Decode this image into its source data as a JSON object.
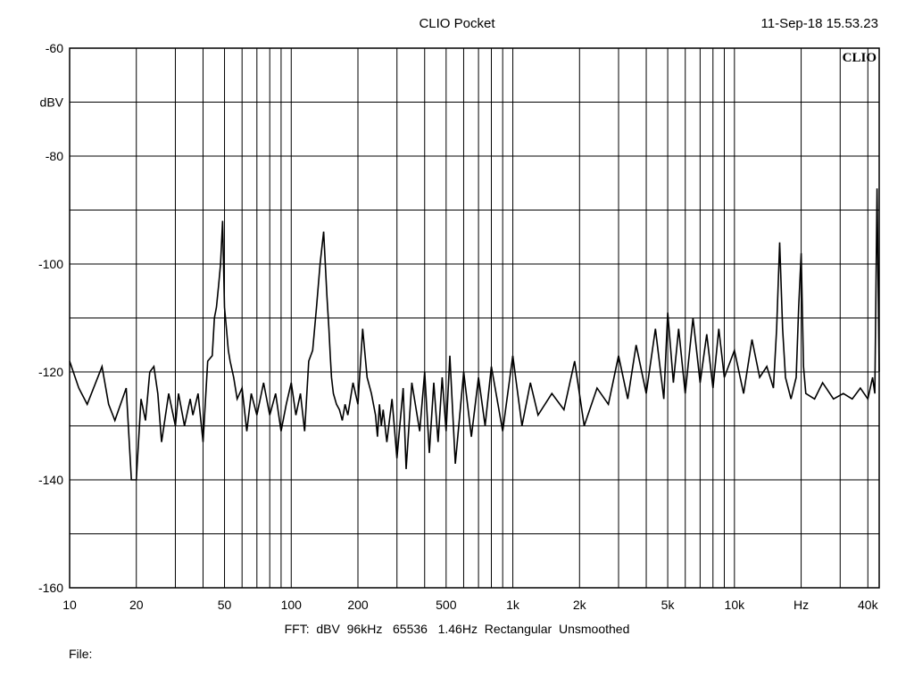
{
  "header": {
    "title": "CLIO Pocket",
    "timestamp": "11-Sep-18 15.53.23"
  },
  "footer": {
    "settings": "FFT:  dBV  96kHz   65536   1.46Hz  Rectangular  Unsmoothed",
    "file_label": "File:"
  },
  "chart_data": {
    "type": "line",
    "title": "CLIO Pocket",
    "logo": "CLIO",
    "xlabel": "Hz",
    "ylabel": "dBV",
    "x_scale": "log",
    "xlim": [
      10,
      45000
    ],
    "ylim": [
      -160,
      -60
    ],
    "grid": true,
    "y_ticks": [
      -60,
      -80,
      -100,
      -120,
      -140,
      -160
    ],
    "x_ticks": [
      {
        "value": 10,
        "label": "10"
      },
      {
        "value": 20,
        "label": "20"
      },
      {
        "value": 50,
        "label": "50"
      },
      {
        "value": 100,
        "label": "100"
      },
      {
        "value": 200,
        "label": "200"
      },
      {
        "value": 500,
        "label": "500"
      },
      {
        "value": 1000,
        "label": "1k"
      },
      {
        "value": 2000,
        "label": "2k"
      },
      {
        "value": 5000,
        "label": "5k"
      },
      {
        "value": 10000,
        "label": "10k"
      },
      {
        "value": 20000,
        "label": "Hz"
      },
      {
        "value": 40000,
        "label": "40k"
      }
    ],
    "series": [
      {
        "x": [
          10,
          11,
          12,
          14,
          15,
          16,
          18,
          19,
          20,
          21,
          22,
          23,
          24,
          25,
          26,
          28,
          30,
          31,
          33,
          35,
          36,
          38,
          40,
          42,
          44,
          45,
          46,
          47,
          48,
          49,
          50,
          51,
          52,
          53,
          55,
          57,
          60,
          63,
          66,
          70,
          75,
          80,
          85,
          90,
          95,
          100,
          105,
          110,
          115,
          120,
          125,
          130,
          135,
          140,
          145,
          148,
          150,
          152,
          155,
          160,
          165,
          170,
          175,
          180,
          190,
          200,
          210,
          220,
          230,
          240,
          245,
          250,
          255,
          260,
          270,
          285,
          300,
          320,
          330,
          350,
          380,
          400,
          420,
          440,
          460,
          480,
          500,
          520,
          550,
          600,
          650,
          700,
          750,
          800,
          900,
          1000,
          1100,
          1200,
          1300,
          1500,
          1700,
          1900,
          2100,
          2400,
          2700,
          3000,
          3300,
          3600,
          4000,
          4400,
          4800,
          5000,
          5300,
          5600,
          6000,
          6500,
          7000,
          7500,
          8000,
          8500,
          9000,
          10000,
          11000,
          12000,
          13000,
          14000,
          15000,
          15500,
          16000,
          16500,
          17000,
          18000,
          19000,
          19500,
          20000,
          20500,
          21000,
          23000,
          25000,
          28000,
          31000,
          34000,
          37000,
          40000,
          42000,
          43000,
          44000,
          45000
        ],
        "y": [
          -118,
          -123,
          -126,
          -119,
          -126,
          -129,
          -123,
          -140,
          -140,
          -125,
          -129,
          -120,
          -119,
          -124,
          -133,
          -124,
          -130,
          -124,
          -130,
          -125,
          -128,
          -124,
          -133,
          -118,
          -117,
          -110,
          -108,
          -104,
          -100,
          -92,
          -108,
          -112,
          -116,
          -118,
          -121,
          -125,
          -123,
          -131,
          -124,
          -128,
          -122,
          -128,
          -124,
          -131,
          -126,
          -122,
          -128,
          -124,
          -131,
          -118,
          -116,
          -108,
          -100,
          -94,
          -106,
          -112,
          -117,
          -121,
          -124,
          -126,
          -127,
          -129,
          -126,
          -128,
          -122,
          -126,
          -112,
          -121,
          -124,
          -128,
          -132,
          -126,
          -130,
          -127,
          -133,
          -125,
          -136,
          -123,
          -138,
          -122,
          -131,
          -120,
          -135,
          -122,
          -133,
          -121,
          -131,
          -117,
          -137,
          -120,
          -132,
          -121,
          -130,
          -119,
          -131,
          -117,
          -130,
          -122,
          -128,
          -124,
          -127,
          -118,
          -130,
          -123,
          -126,
          -117,
          -125,
          -115,
          -124,
          -112,
          -125,
          -109,
          -122,
          -112,
          -124,
          -110,
          -122,
          -113,
          -123,
          -112,
          -121,
          -116,
          -124,
          -114,
          -121,
          -119,
          -123,
          -112,
          -96,
          -112,
          -121,
          -125,
          -121,
          -108,
          -98,
          -119,
          -124,
          -125,
          -122,
          -125,
          -124,
          -125,
          -123,
          -125,
          -121,
          -124,
          -86,
          -120
        ]
      }
    ]
  }
}
